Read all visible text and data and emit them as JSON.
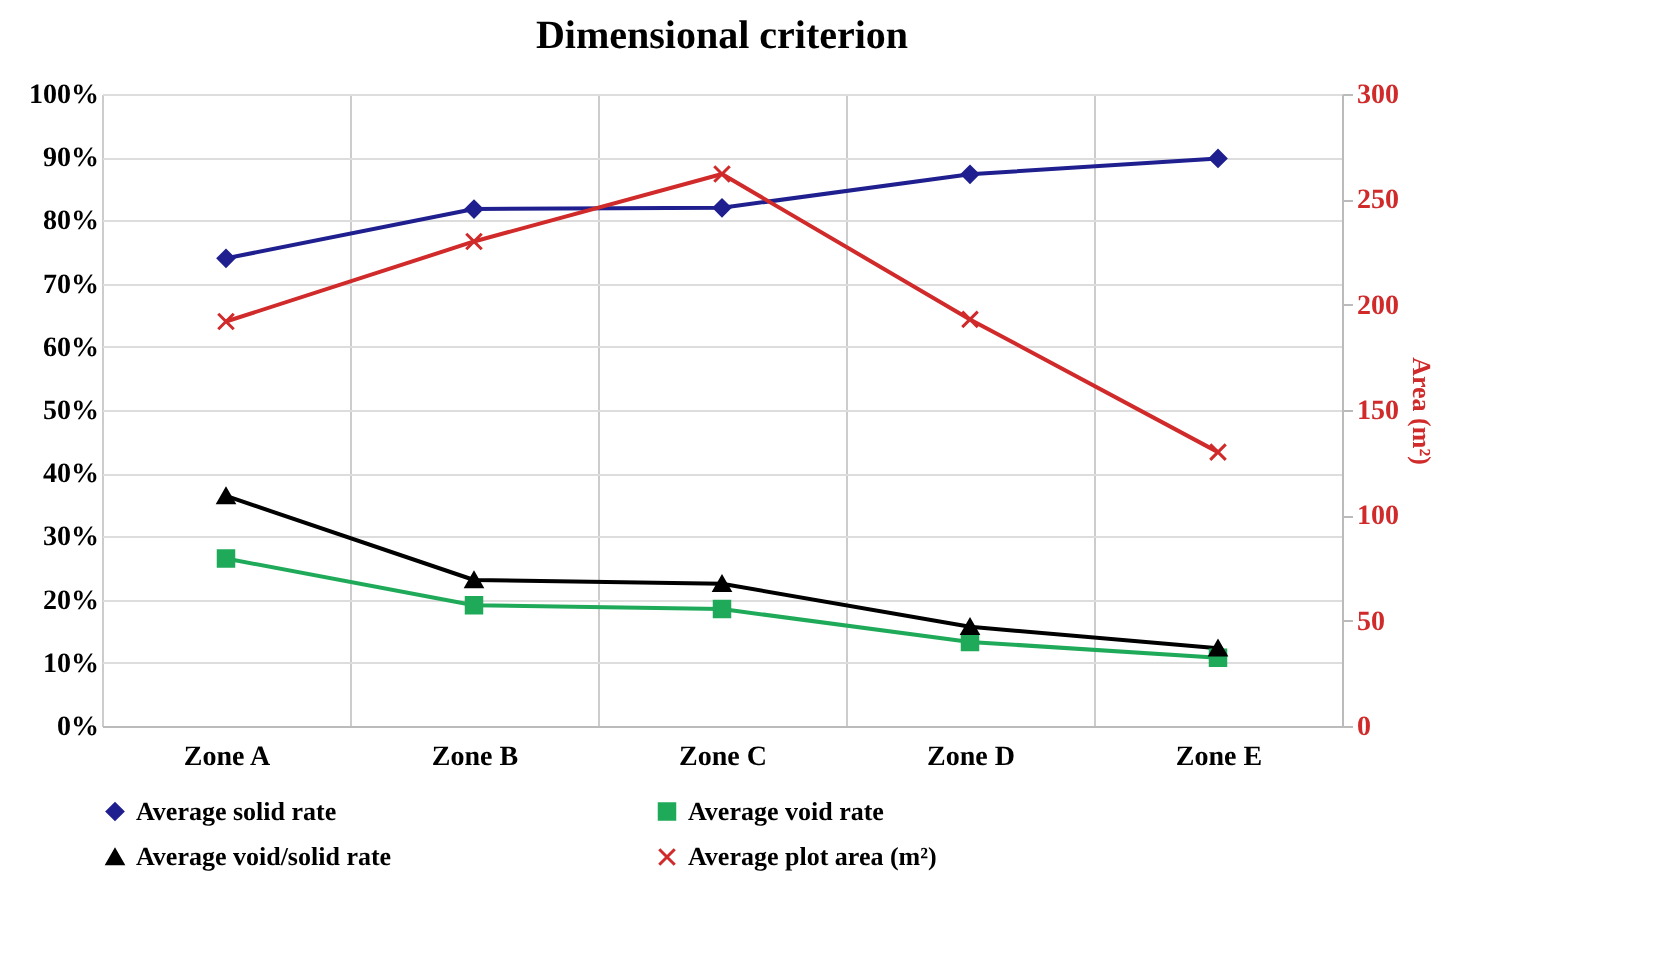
{
  "chart_data": {
    "type": "line",
    "title": "Dimensional criterion",
    "y2label": "Area (m²)",
    "categories": [
      "Zone A",
      "Zone B",
      "Zone C",
      "Zone D",
      "Zone E"
    ],
    "series": [
      {
        "name": "Average solid rate",
        "color": "#1f1f8f",
        "marker": "diamond",
        "values": [
          74,
          81.8,
          82,
          87.3,
          89.8
        ]
      },
      {
        "name": "Average void rate",
        "color": "#1faa5a",
        "marker": "square",
        "values": [
          26.5,
          19.1,
          18.5,
          13.3,
          10.8
        ]
      },
      {
        "name": "Average void/solid rate",
        "color": "#000000",
        "marker": "triangle",
        "values": [
          36.4,
          23.1,
          22.5,
          15.7,
          12.3
        ]
      },
      {
        "name": "Average plot area (m²)",
        "color": "#d02a2a",
        "marker": "cross",
        "axis": "y2",
        "values": [
          192,
          230,
          262,
          193,
          130
        ]
      }
    ],
    "ylim": [
      0,
      100
    ],
    "yticks": [
      {
        "value": 0,
        "label": "0%"
      },
      {
        "value": 10,
        "label": "10%"
      },
      {
        "value": 20,
        "label": "20%"
      },
      {
        "value": 30,
        "label": "30%"
      },
      {
        "value": 40,
        "label": "40%"
      },
      {
        "value": 50,
        "label": "50%"
      },
      {
        "value": 60,
        "label": "60%"
      },
      {
        "value": 70,
        "label": "70%"
      },
      {
        "value": 80,
        "label": "80%"
      },
      {
        "value": 90,
        "label": "90%"
      },
      {
        "value": 100,
        "label": "100%"
      }
    ],
    "y2lim": [
      0,
      300
    ],
    "y2ticks": [
      0,
      50,
      100,
      150,
      200,
      250,
      300
    ],
    "grid": true,
    "legend": "bottom"
  }
}
